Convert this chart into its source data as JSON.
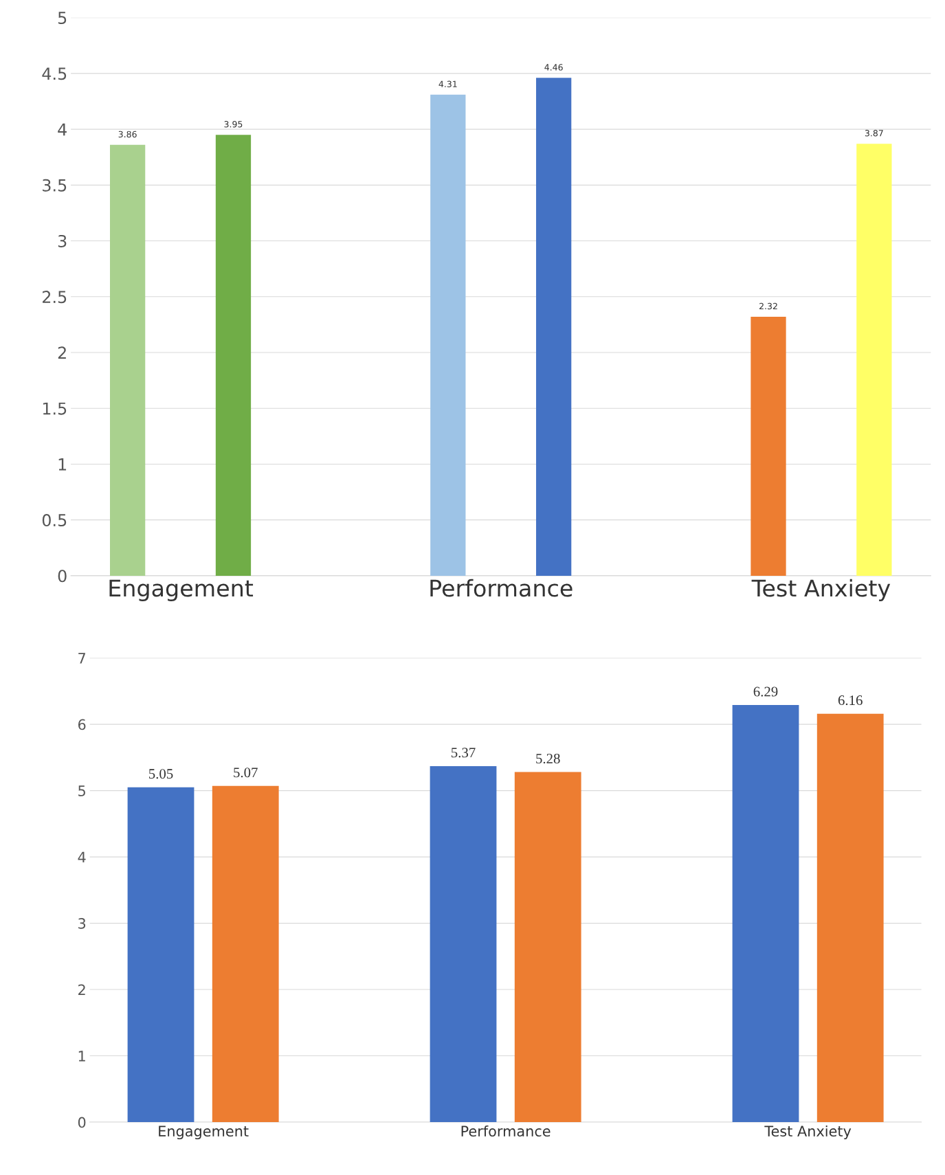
{
  "chart_data": [
    {
      "type": "bar",
      "categories": [
        "Engagement",
        "Performance",
        "Test Anxiety"
      ],
      "series": [
        {
          "colors": [
            "#a9d18e",
            "#9dc3e6",
            "#ed7d31"
          ],
          "values": [
            3.86,
            4.31,
            2.32
          ]
        },
        {
          "colors": [
            "#70ad47",
            "#4472c4",
            "#ffff66"
          ],
          "values": [
            3.95,
            4.46,
            3.87
          ]
        }
      ],
      "ylim": [
        0,
        5
      ],
      "yticks": [
        0,
        0.5,
        1,
        1.5,
        2,
        2.5,
        3,
        3.5,
        4,
        4.5,
        5
      ],
      "grid": "y",
      "data_labels": true
    },
    {
      "type": "bar",
      "categories": [
        "Engagement",
        "Performance",
        "Test Anxiety"
      ],
      "series": [
        {
          "color": "#4472c4",
          "values": [
            5.05,
            5.37,
            6.29
          ]
        },
        {
          "color": "#ed7d31",
          "values": [
            5.07,
            5.28,
            6.16
          ]
        }
      ],
      "ylim": [
        0,
        7
      ],
      "yticks": [
        0,
        1,
        2,
        3,
        4,
        5,
        6,
        7
      ],
      "grid": "y",
      "data_labels": true
    }
  ]
}
